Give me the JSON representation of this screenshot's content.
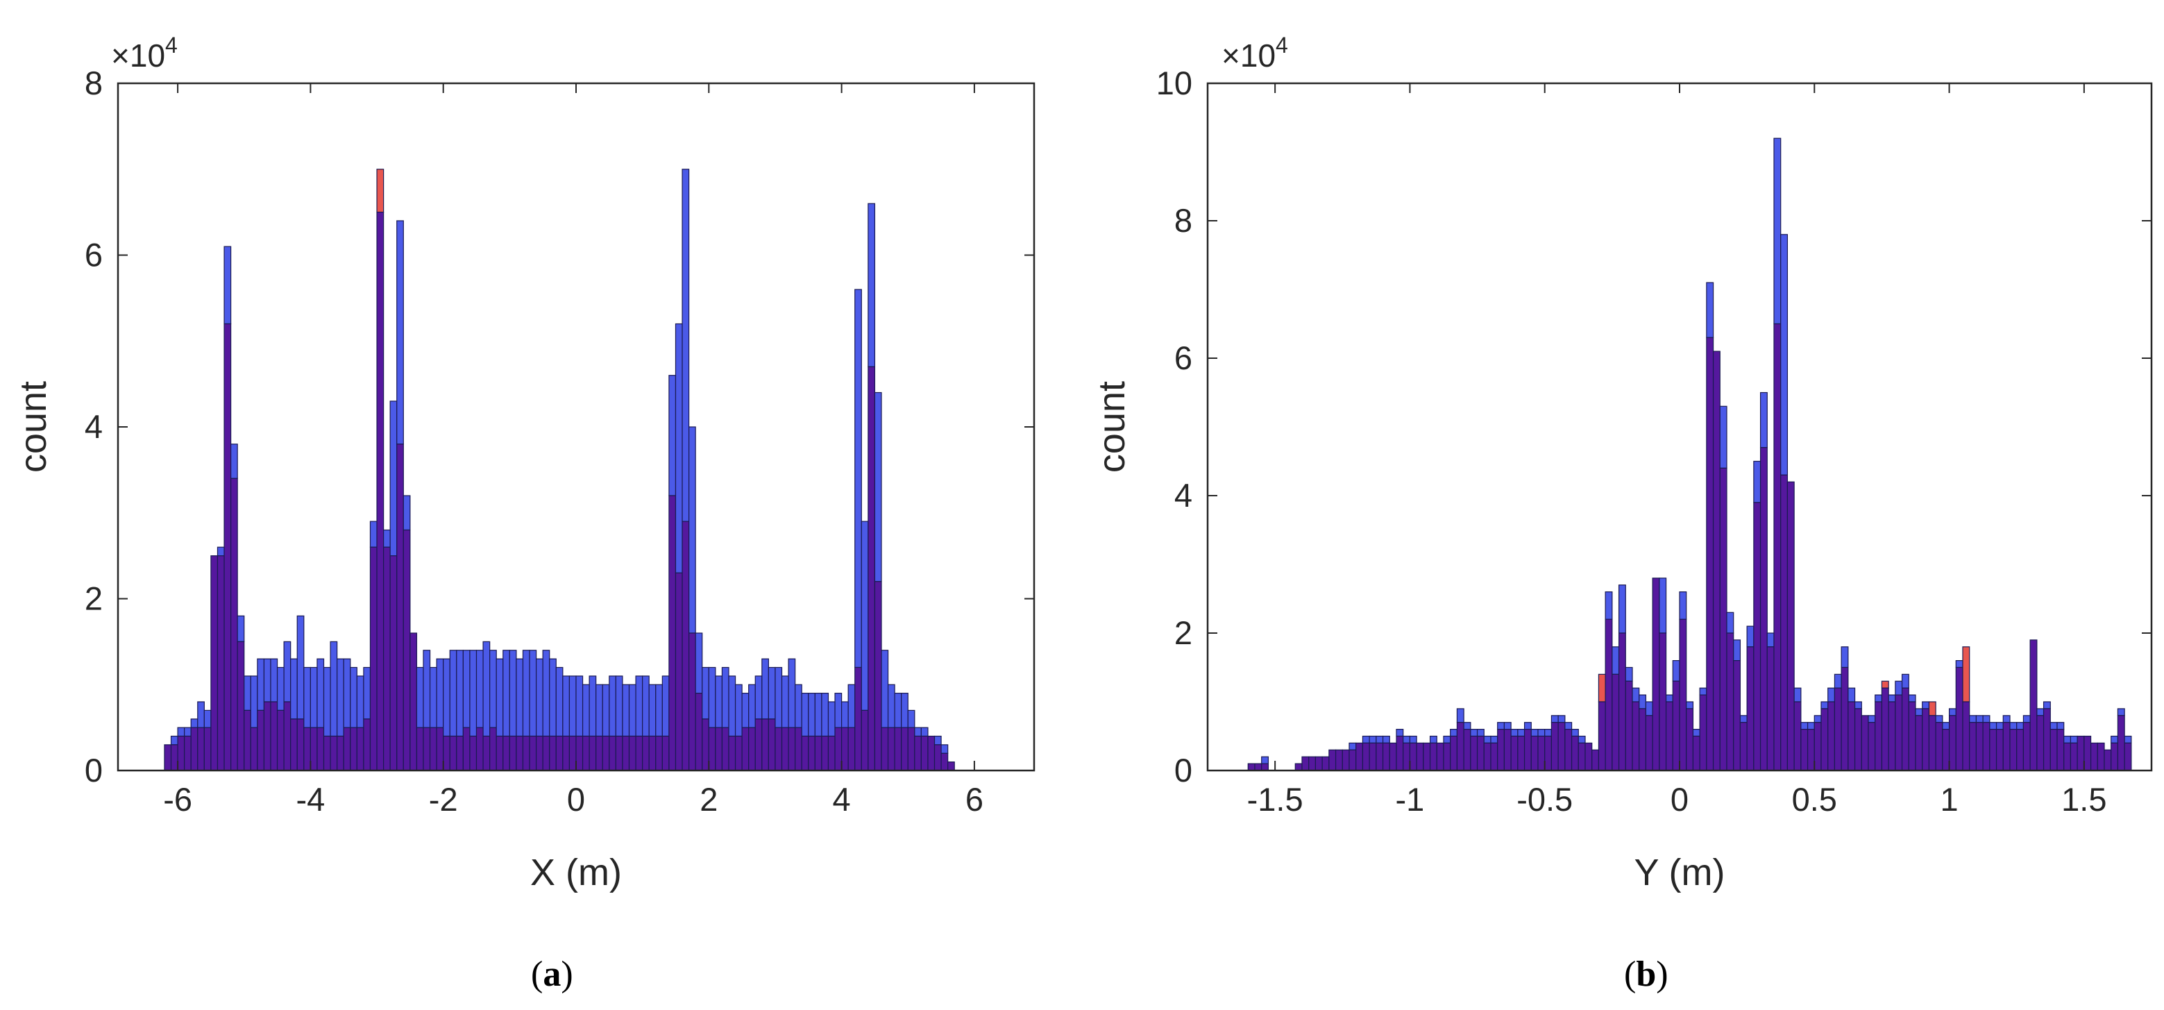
{
  "colors": {
    "blue_series": "#4b5ae8",
    "red_series": "#e8564f",
    "overlap": "#55189e",
    "edge": "#1a1a52",
    "axis": "#262626"
  },
  "chart_data": [
    {
      "type": "bar",
      "subtype": "overlaid-histogram",
      "caption": {
        "open": "(",
        "letter": "a",
        "close": ")"
      },
      "xlabel": "X (m)",
      "ylabel": "count",
      "scale_multiplier_label": {
        "base": "×10",
        "exponent": "4"
      },
      "xlim": [
        -6.9,
        6.9
      ],
      "ylim": [
        0,
        8
      ],
      "xticks": [
        -6,
        -4,
        -2,
        0,
        2,
        4,
        6
      ],
      "yticks": [
        0,
        2,
        4,
        6,
        8
      ],
      "y_units": "×10^4 counts",
      "bin_width": 0.1,
      "grid": false,
      "box": true,
      "bin_edges_start": -6.2,
      "series": [
        {
          "color": "blue",
          "values": [
            0.3,
            0.4,
            0.5,
            0.5,
            0.6,
            0.8,
            0.7,
            2.5,
            2.6,
            6.1,
            3.8,
            1.8,
            1.1,
            1.1,
            1.3,
            1.3,
            1.3,
            1.2,
            1.5,
            1.3,
            1.8,
            1.2,
            1.2,
            1.3,
            1.2,
            1.5,
            1.3,
            1.3,
            1.2,
            1.1,
            1.2,
            2.9,
            6.5,
            2.8,
            4.3,
            6.4,
            3.2,
            1.6,
            1.2,
            1.4,
            1.2,
            1.3,
            1.3,
            1.4,
            1.4,
            1.4,
            1.4,
            1.4,
            1.5,
            1.4,
            1.3,
            1.4,
            1.4,
            1.3,
            1.4,
            1.4,
            1.3,
            1.4,
            1.3,
            1.2,
            1.1,
            1.1,
            1.1,
            1.0,
            1.1,
            1.0,
            1.0,
            1.1,
            1.1,
            1.0,
            1.0,
            1.1,
            1.1,
            1.0,
            1.0,
            1.1,
            4.6,
            5.2,
            7.0,
            4.0,
            1.6,
            1.2,
            1.2,
            1.1,
            1.2,
            1.1,
            1.0,
            0.9,
            1.0,
            1.1,
            1.3,
            1.2,
            1.2,
            1.1,
            1.3,
            1.0,
            0.9,
            0.9,
            0.9,
            0.9,
            0.8,
            0.9,
            0.8,
            1.0,
            5.6,
            2.9,
            6.6,
            4.4,
            1.4,
            1.0,
            0.9,
            0.9,
            0.7,
            0.5,
            0.5,
            0.4,
            0.4,
            0.3,
            0.1
          ]
        },
        {
          "color": "red",
          "values": [
            0.3,
            0.3,
            0.4,
            0.4,
            0.5,
            0.5,
            0.5,
            2.5,
            2.5,
            5.2,
            3.4,
            1.5,
            0.7,
            0.5,
            0.7,
            0.8,
            0.8,
            0.7,
            0.8,
            0.6,
            0.6,
            0.5,
            0.5,
            0.5,
            0.4,
            0.4,
            0.4,
            0.5,
            0.5,
            0.5,
            0.6,
            2.6,
            7.0,
            2.6,
            2.5,
            3.8,
            2.8,
            1.6,
            0.5,
            0.5,
            0.5,
            0.5,
            0.4,
            0.4,
            0.4,
            0.5,
            0.4,
            0.5,
            0.4,
            0.5,
            0.4,
            0.4,
            0.4,
            0.4,
            0.4,
            0.4,
            0.4,
            0.4,
            0.4,
            0.4,
            0.4,
            0.4,
            0.4,
            0.4,
            0.4,
            0.4,
            0.4,
            0.4,
            0.4,
            0.4,
            0.4,
            0.4,
            0.4,
            0.4,
            0.4,
            0.4,
            3.2,
            2.3,
            2.9,
            1.6,
            0.9,
            0.6,
            0.5,
            0.5,
            0.5,
            0.4,
            0.4,
            0.5,
            0.5,
            0.6,
            0.6,
            0.6,
            0.5,
            0.5,
            0.5,
            0.5,
            0.4,
            0.4,
            0.4,
            0.4,
            0.4,
            0.5,
            0.5,
            0.5,
            1.2,
            0.7,
            4.7,
            2.2,
            0.5,
            0.5,
            0.5,
            0.5,
            0.5,
            0.4,
            0.4,
            0.4,
            0.3,
            0.2,
            0.1
          ]
        }
      ]
    },
    {
      "type": "bar",
      "subtype": "overlaid-histogram",
      "caption": {
        "open": "(",
        "letter": "b",
        "close": ")"
      },
      "xlabel": "Y (m)",
      "ylabel": "count",
      "scale_multiplier_label": {
        "base": "×10",
        "exponent": "4"
      },
      "xlim": [
        -1.75,
        1.75
      ],
      "ylim": [
        0,
        10
      ],
      "xticks": [
        -1.5,
        -1,
        -0.5,
        0,
        0.5,
        1,
        1.5
      ],
      "xticklabels": [
        "-1.5",
        "-1",
        "-0.5",
        "0",
        "0.5",
        "1",
        "1.5"
      ],
      "yticks": [
        0,
        2,
        4,
        6,
        8,
        10
      ],
      "y_units": "×10^4 counts",
      "bin_width": 0.025,
      "grid": false,
      "box": true,
      "bin_edges_start": -1.625,
      "series": [
        {
          "color": "blue",
          "values": [
            0.0,
            0.1,
            0.1,
            0.2,
            0.0,
            0.0,
            0.0,
            0.0,
            0.1,
            0.2,
            0.2,
            0.2,
            0.2,
            0.3,
            0.3,
            0.3,
            0.4,
            0.4,
            0.5,
            0.5,
            0.5,
            0.5,
            0.4,
            0.6,
            0.5,
            0.5,
            0.4,
            0.4,
            0.5,
            0.4,
            0.5,
            0.6,
            0.9,
            0.7,
            0.6,
            0.6,
            0.5,
            0.5,
            0.7,
            0.7,
            0.6,
            0.6,
            0.7,
            0.6,
            0.6,
            0.6,
            0.8,
            0.8,
            0.7,
            0.6,
            0.5,
            0.4,
            0.3,
            1.0,
            2.6,
            1.8,
            2.7,
            1.5,
            1.2,
            1.1,
            1.0,
            2.8,
            2.8,
            1.1,
            1.6,
            2.6,
            1.0,
            0.6,
            1.2,
            7.1,
            6.1,
            5.3,
            2.3,
            1.9,
            0.8,
            2.1,
            4.5,
            5.5,
            2.0,
            9.2,
            7.8,
            4.2,
            1.2,
            0.7,
            0.7,
            0.8,
            1.0,
            1.2,
            1.4,
            1.8,
            1.2,
            1.0,
            0.8,
            0.8,
            1.1,
            1.2,
            1.1,
            1.3,
            1.4,
            1.1,
            0.9,
            1.0,
            0.8,
            0.8,
            0.7,
            0.9,
            1.6,
            1.0,
            0.8,
            0.8,
            0.8,
            0.7,
            0.7,
            0.8,
            0.7,
            0.7,
            0.8,
            1.9,
            0.9,
            1.0,
            0.7,
            0.7,
            0.5,
            0.5,
            0.5,
            0.5,
            0.4,
            0.4,
            0.3,
            0.5,
            0.9,
            0.5,
            0.0,
            0.0,
            0.0,
            0.0,
            0.0,
            0.0,
            0.0,
            0.5,
            0.1
          ]
        },
        {
          "color": "red",
          "values": [
            0.0,
            0.1,
            0.1,
            0.1,
            0.0,
            0.0,
            0.0,
            0.0,
            0.1,
            0.2,
            0.2,
            0.2,
            0.2,
            0.3,
            0.3,
            0.3,
            0.3,
            0.4,
            0.4,
            0.4,
            0.4,
            0.4,
            0.4,
            0.5,
            0.4,
            0.4,
            0.4,
            0.4,
            0.4,
            0.4,
            0.4,
            0.5,
            0.7,
            0.6,
            0.5,
            0.5,
            0.4,
            0.4,
            0.6,
            0.6,
            0.5,
            0.5,
            0.6,
            0.5,
            0.5,
            0.5,
            0.7,
            0.7,
            0.6,
            0.5,
            0.4,
            0.4,
            0.3,
            1.4,
            2.2,
            1.4,
            2.0,
            1.3,
            1.0,
            0.9,
            0.8,
            2.8,
            2.0,
            1.0,
            1.3,
            2.2,
            0.9,
            0.5,
            1.1,
            6.3,
            6.1,
            4.4,
            2.0,
            1.6,
            0.7,
            1.8,
            3.9,
            4.7,
            1.8,
            6.5,
            4.3,
            4.2,
            1.0,
            0.6,
            0.6,
            0.7,
            0.9,
            1.0,
            1.2,
            1.5,
            1.0,
            0.9,
            0.8,
            0.7,
            1.0,
            1.3,
            1.0,
            1.1,
            1.2,
            1.0,
            0.8,
            0.9,
            1.0,
            0.7,
            0.6,
            0.8,
            1.5,
            1.8,
            0.7,
            0.7,
            0.7,
            0.6,
            0.6,
            0.7,
            0.6,
            0.6,
            0.7,
            1.9,
            0.8,
            0.9,
            0.6,
            0.6,
            0.4,
            0.4,
            0.5,
            0.5,
            0.4,
            0.4,
            0.3,
            0.4,
            0.8,
            0.4,
            0.0,
            0.0,
            0.0,
            0.0,
            0.0,
            0.0,
            0.0,
            0.4,
            0.1
          ]
        }
      ]
    }
  ]
}
